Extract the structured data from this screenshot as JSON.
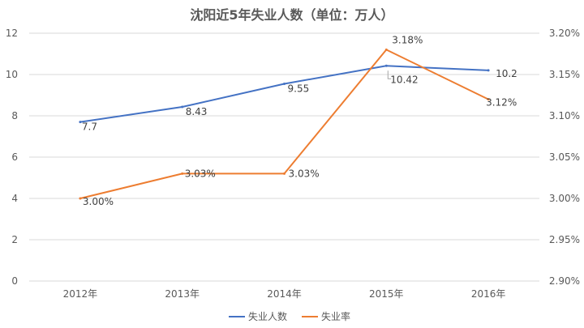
{
  "chart_data": {
    "type": "line",
    "title": "沈阳近5年失业人数（单位：万人）",
    "categories": [
      "2012年",
      "2013年",
      "2014年",
      "2015年",
      "2016年"
    ],
    "series": [
      {
        "name": "失业人数",
        "axis": "left",
        "color": "#4472c4",
        "values": [
          7.7,
          8.43,
          9.55,
          10.42,
          10.2
        ],
        "labels": [
          "7.7",
          "8.43",
          "9.55",
          "10.42",
          "10.2"
        ]
      },
      {
        "name": "失业率",
        "axis": "right",
        "color": "#ed7d31",
        "values": [
          3.0,
          3.03,
          3.03,
          3.18,
          3.12
        ],
        "labels": [
          "3.00%",
          "3.03%",
          "3.03%",
          "3.18%",
          "3.12%"
        ]
      }
    ],
    "y_left": {
      "min": 0,
      "max": 12,
      "ticks": [
        "0",
        "2",
        "4",
        "6",
        "8",
        "10",
        "12"
      ]
    },
    "y_right": {
      "min": 2.9,
      "max": 3.2,
      "ticks": [
        "2.90%",
        "2.95%",
        "3.00%",
        "3.05%",
        "3.10%",
        "3.15%",
        "3.20%"
      ]
    },
    "grid": true,
    "legend_position": "bottom"
  }
}
